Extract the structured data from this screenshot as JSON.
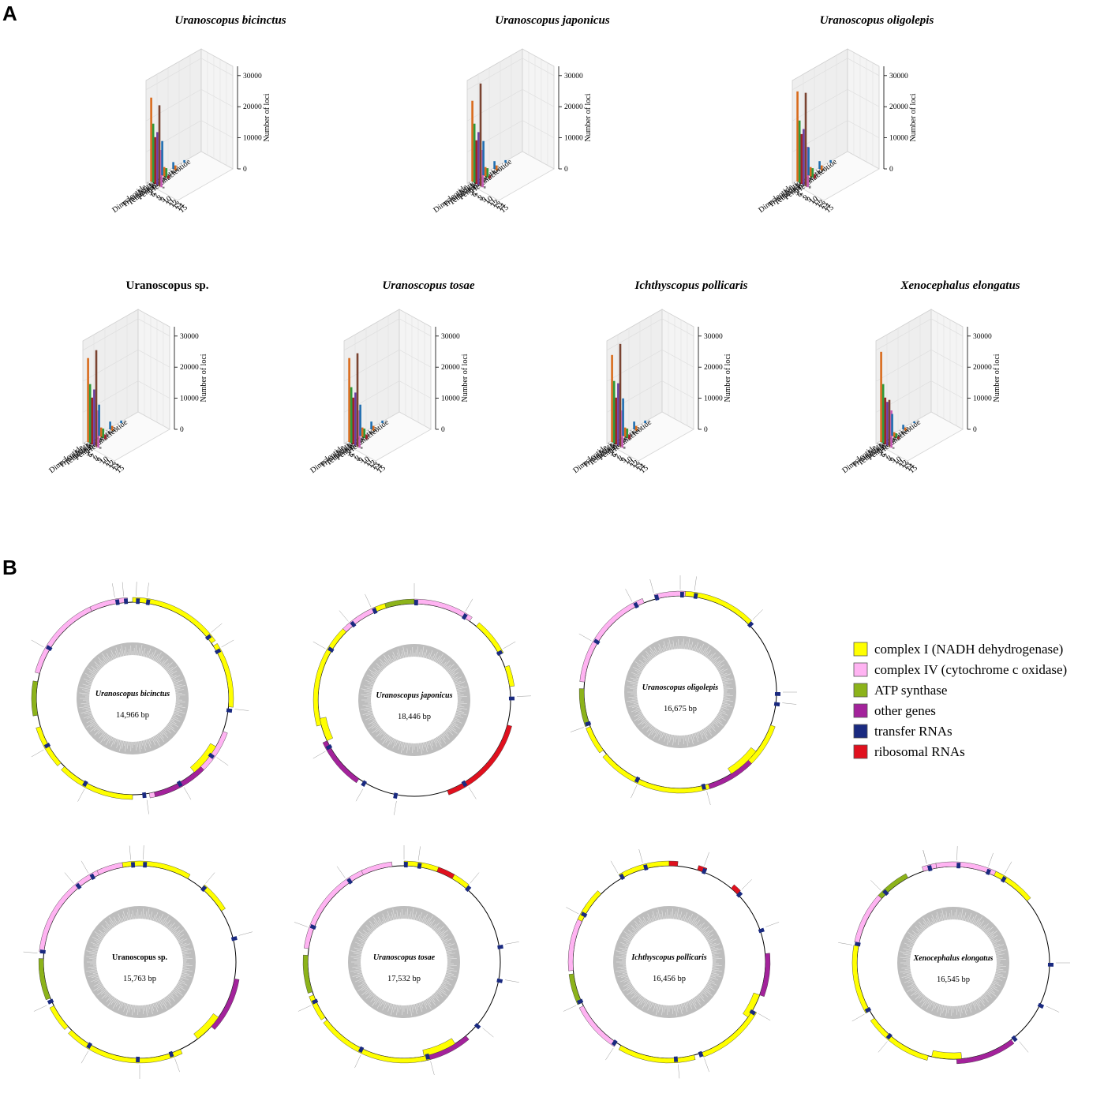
{
  "panel_labels": {
    "a": "A",
    "b": "B"
  },
  "chart_data": [
    {
      "type": "bar3d",
      "panel": "A",
      "zlabel": "Number of loci",
      "zticks": [
        "0",
        "10000",
        "20000",
        "30000"
      ],
      "zlim": [
        0,
        33000
      ],
      "motif_labels": [
        "Dinucleotide",
        "Trinucleotide",
        "Tetranucleotide",
        "Pentanucleotide",
        "Hexanucleotide"
      ],
      "repeat_labels": [
        "5",
        "6",
        "7",
        "8",
        "9",
        "10",
        "11",
        "12",
        "13",
        "14",
        "15"
      ],
      "series_colors": [
        "#d96b1c",
        "#2f9a3a",
        "#a0222a",
        "#6a3fa0",
        "#7a4330",
        "#c65ab4",
        "#7a7a7a",
        "#1f6eb0"
      ],
      "species": [
        {
          "name": "Uranoscopus bicinctus",
          "values": {
            "di": [
              27000,
              19000,
              15000,
              17000,
              26000,
              12000,
              500
            ],
            "tri": [
              11000,
              3000,
              3000,
              1000
            ],
            "tetra": [
              2200,
              1500
            ],
            "penta": [
              800
            ]
          }
        },
        {
          "name": "Uranoscopus japonicus",
          "values": {
            "di": [
              26000,
              19000,
              14000,
              17000,
              33000,
              12000,
              700
            ],
            "tri": [
              11000,
              3000,
              3000,
              1000
            ],
            "tetra": [
              2500,
              1500
            ],
            "penta": [
              800
            ]
          }
        },
        {
          "name": "Uranoscopus oligolepis",
          "values": {
            "di": [
              29000,
              20000,
              16000,
              18000,
              30000,
              13000,
              800
            ],
            "tri": [
              9000,
              3000,
              3000,
              1500
            ],
            "tetra": [
              2500,
              1500
            ],
            "penta": [
              800
            ]
          }
        },
        {
          "name": "Uranoscopus sp.",
          "values": {
            "di": [
              27000,
              19000,
              15000,
              18000,
              31000,
              12000,
              600
            ],
            "tri": [
              10000,
              3000,
              3000,
              1500
            ],
            "tetra": [
              2500,
              1500
            ],
            "penta": [
              800
            ]
          }
        },
        {
          "name": "Uranoscopus tosae",
          "values": {
            "di": [
              27000,
              18000,
              15000,
              17000,
              30000,
              12000,
              600
            ],
            "tri": [
              10000,
              3000,
              3000,
              1500
            ],
            "tetra": [
              2500,
              1500
            ],
            "penta": [
              800
            ]
          }
        },
        {
          "name": "Ichthyscopus pollicaris",
          "values": {
            "di": [
              28000,
              20000,
              15000,
              20000,
              33000,
              12000,
              700
            ],
            "tri": [
              12000,
              3000,
              3000,
              1500
            ],
            "tetra": [
              2500,
              1500
            ],
            "penta": [
              800
            ]
          }
        },
        {
          "name": "Xenocephalus elongatus",
          "values": {
            "di": [
              29000,
              19000,
              15000,
              14000,
              15000,
              12000,
              500
            ],
            "tri": [
              7000,
              1500,
              1500,
              800
            ],
            "tetra": [
              1500,
              1000
            ],
            "penta": [
              500
            ]
          }
        }
      ]
    },
    {
      "type": "circular_genome_map",
      "panel": "B",
      "legend": [
        {
          "label": "complex I (NADH dehydrogenase)",
          "color": "#ffff00"
        },
        {
          "label": "complex IV (cytochrome c oxidase)",
          "color": "#ffb3f2"
        },
        {
          "label": "ATP synthase",
          "color": "#8cb31a"
        },
        {
          "label": "other genes",
          "color": "#a3229b"
        },
        {
          "label": "transfer RNAs",
          "color": "#1a2a80"
        },
        {
          "label": "ribosomal RNAs",
          "color": "#e0101e"
        }
      ],
      "genomes": [
        {
          "name": "Uranoscopus bicinctus",
          "size": "14,966 bp",
          "outer": [
            [
              0,
              "#ffff00",
              55,
              6
            ],
            [
              57,
              "#ffff00",
              38,
              6
            ],
            [
              110,
              "#ffb3f2",
              60,
              6
            ],
            [
              260,
              "#8cb31a",
              20,
              6
            ],
            [
              285,
              "#ffb3f2",
              50,
              6
            ],
            [
              -25,
              "#ffb3f2",
              22,
              6
            ],
            [
              135,
              "#a3229b",
              32,
              6
            ],
            [
              120,
              "#ffff00",
              20,
              -8
            ],
            [
              180,
              "#ffff00",
              45,
              6
            ],
            [
              228,
              "#ffff00",
              25,
              6
            ]
          ],
          "trna": [
            2,
            8,
            50,
            60,
            96,
            125,
            150,
            172,
            208,
            240,
            300,
            350,
            355
          ]
        },
        {
          "name": "Uranoscopus japonicus",
          "size": "18,446 bp",
          "outer": [
            [
              -20,
              "#8cb31a",
              20,
              6
            ],
            [
              0,
              "#ffb3f2",
              35,
              6
            ],
            [
              40,
              "#ffff00",
              22,
              6
            ],
            [
              70,
              "#ffff00",
              12,
              6
            ],
            [
              105,
              "#e0101e",
              55,
              6
            ],
            [
              215,
              "#a3229b",
              30,
              6
            ],
            [
              255,
              "#ffff00",
              60,
              6
            ],
            [
              318,
              "#ffff00",
              25,
              6
            ],
            [
              -45,
              "#ffb3f2",
              22,
              6
            ],
            [
              245,
              "#ffff00",
              14,
              -8
            ]
          ],
          "trna": [
            0,
            30,
            60,
            88,
            148,
            190,
            210,
            240,
            300,
            320,
            335
          ]
        },
        {
          "name": "Uranoscopus oligolepis",
          "size": "16,675 bp",
          "outer": [
            [
              0,
              "#ffff00",
              45,
              6
            ],
            [
              110,
              "#ffff00",
              30,
              6
            ],
            [
              160,
              "#ffff00",
              70,
              6
            ],
            [
              233,
              "#ffff00",
              16,
              6
            ],
            [
              250,
              "#8cb31a",
              22,
              6
            ],
            [
              276,
              "#ffb3f2",
              62,
              6
            ],
            [
              135,
              "#a3229b",
              28,
              6
            ],
            [
              128,
              "#ffff00",
              20,
              -8
            ],
            [
              -15,
              "#ffb3f2",
              18,
              6
            ]
          ],
          "trna": [
            0,
            8,
            45,
            90,
            96,
            165,
            205,
            250,
            300,
            332,
            345
          ]
        },
        {
          "name": "Uranoscopus sp.",
          "size": "15,763 bp",
          "outer": [
            [
              -10,
              "#ffff00",
              40,
              6
            ],
            [
              40,
              "#ffff00",
              18,
              6
            ],
            [
              100,
              "#a3229b",
              32,
              6
            ],
            [
              125,
              "#ffff00",
              18,
              -8
            ],
            [
              155,
              "#ffff00",
              70,
              6
            ],
            [
              228,
              "#ffff00",
              15,
              6
            ],
            [
              248,
              "#8cb31a",
              24,
              6
            ],
            [
              276,
              "#ffb3f2",
              62,
              6
            ],
            [
              -25,
              "#ffb3f2",
              15,
              6
            ]
          ],
          "trna": [
            -5,
            2,
            40,
            75,
            160,
            180,
            210,
            245,
            275,
            320,
            330
          ]
        },
        {
          "name": "Uranoscopus tosae",
          "size": "17,532 bp",
          "outer": [
            [
              0,
              "#ffff00",
              40,
              6
            ],
            [
              20,
              "#e0101e",
              10,
              6
            ],
            [
              140,
              "#a3229b",
              30,
              6
            ],
            [
              148,
              "#ffff00",
              20,
              -8
            ],
            [
              165,
              "#ffff00",
              68,
              6
            ],
            [
              235,
              "#ffff00",
              15,
              6
            ],
            [
              252,
              "#8cb31a",
              22,
              6
            ],
            [
              278,
              "#ffb3f2",
              58,
              6
            ],
            [
              -25,
              "#ffb3f2",
              18,
              6
            ]
          ],
          "trna": [
            0,
            8,
            40,
            80,
            100,
            130,
            165,
            205,
            245,
            290,
            325
          ]
        },
        {
          "name": "Ichthyscopus pollicaris",
          "size": "16,456 bp",
          "outer": [
            [
              -30,
              "#ffff00",
              30,
              6
            ],
            [
              0,
              "#e0101e",
              5,
              6
            ],
            [
              17,
              "#e0101e",
              5,
              6
            ],
            [
              40,
              "#e0101e",
              5,
              6
            ],
            [
              85,
              "#a3229b",
              25,
              6
            ],
            [
              110,
              "#ffff00",
              15,
              -8
            ],
            [
              120,
              "#ffff00",
              40,
              6
            ],
            [
              165,
              "#ffff00",
              45,
              6
            ],
            [
              213,
              "#ffb3f2",
              30,
              6
            ],
            [
              245,
              "#8cb31a",
              18,
              6
            ],
            [
              265,
              "#ffb3f2",
              40,
              6
            ],
            [
              -65,
              "#ffff00",
              20,
              6
            ]
          ],
          "trna": [
            -30,
            -15,
            20,
            45,
            70,
            120,
            160,
            175,
            213,
            245,
            298
          ]
        },
        {
          "name": "Xenocephalus elongatus",
          "size": "16,545 bp",
          "outer": [
            [
              -10,
              "#ffb3f2",
              50,
              6
            ],
            [
              25,
              "#ffff00",
              25,
              6
            ],
            [
              143,
              "#a3229b",
              35,
              6
            ],
            [
              175,
              "#ffff00",
              18,
              -8
            ],
            [
              195,
              "#ffff00",
              40,
              6
            ],
            [
              240,
              "#ffff00",
              40,
              6
            ],
            [
              282,
              "#ffb3f2",
              30,
              6
            ],
            [
              312,
              "#8cb31a",
              20,
              6
            ],
            [
              -18,
              "#ffb3f2",
              8,
              6
            ]
          ],
          "trna": [
            -15,
            2,
            20,
            30,
            90,
            115,
            140,
            220,
            240,
            280,
            315,
            345
          ]
        }
      ]
    }
  ]
}
